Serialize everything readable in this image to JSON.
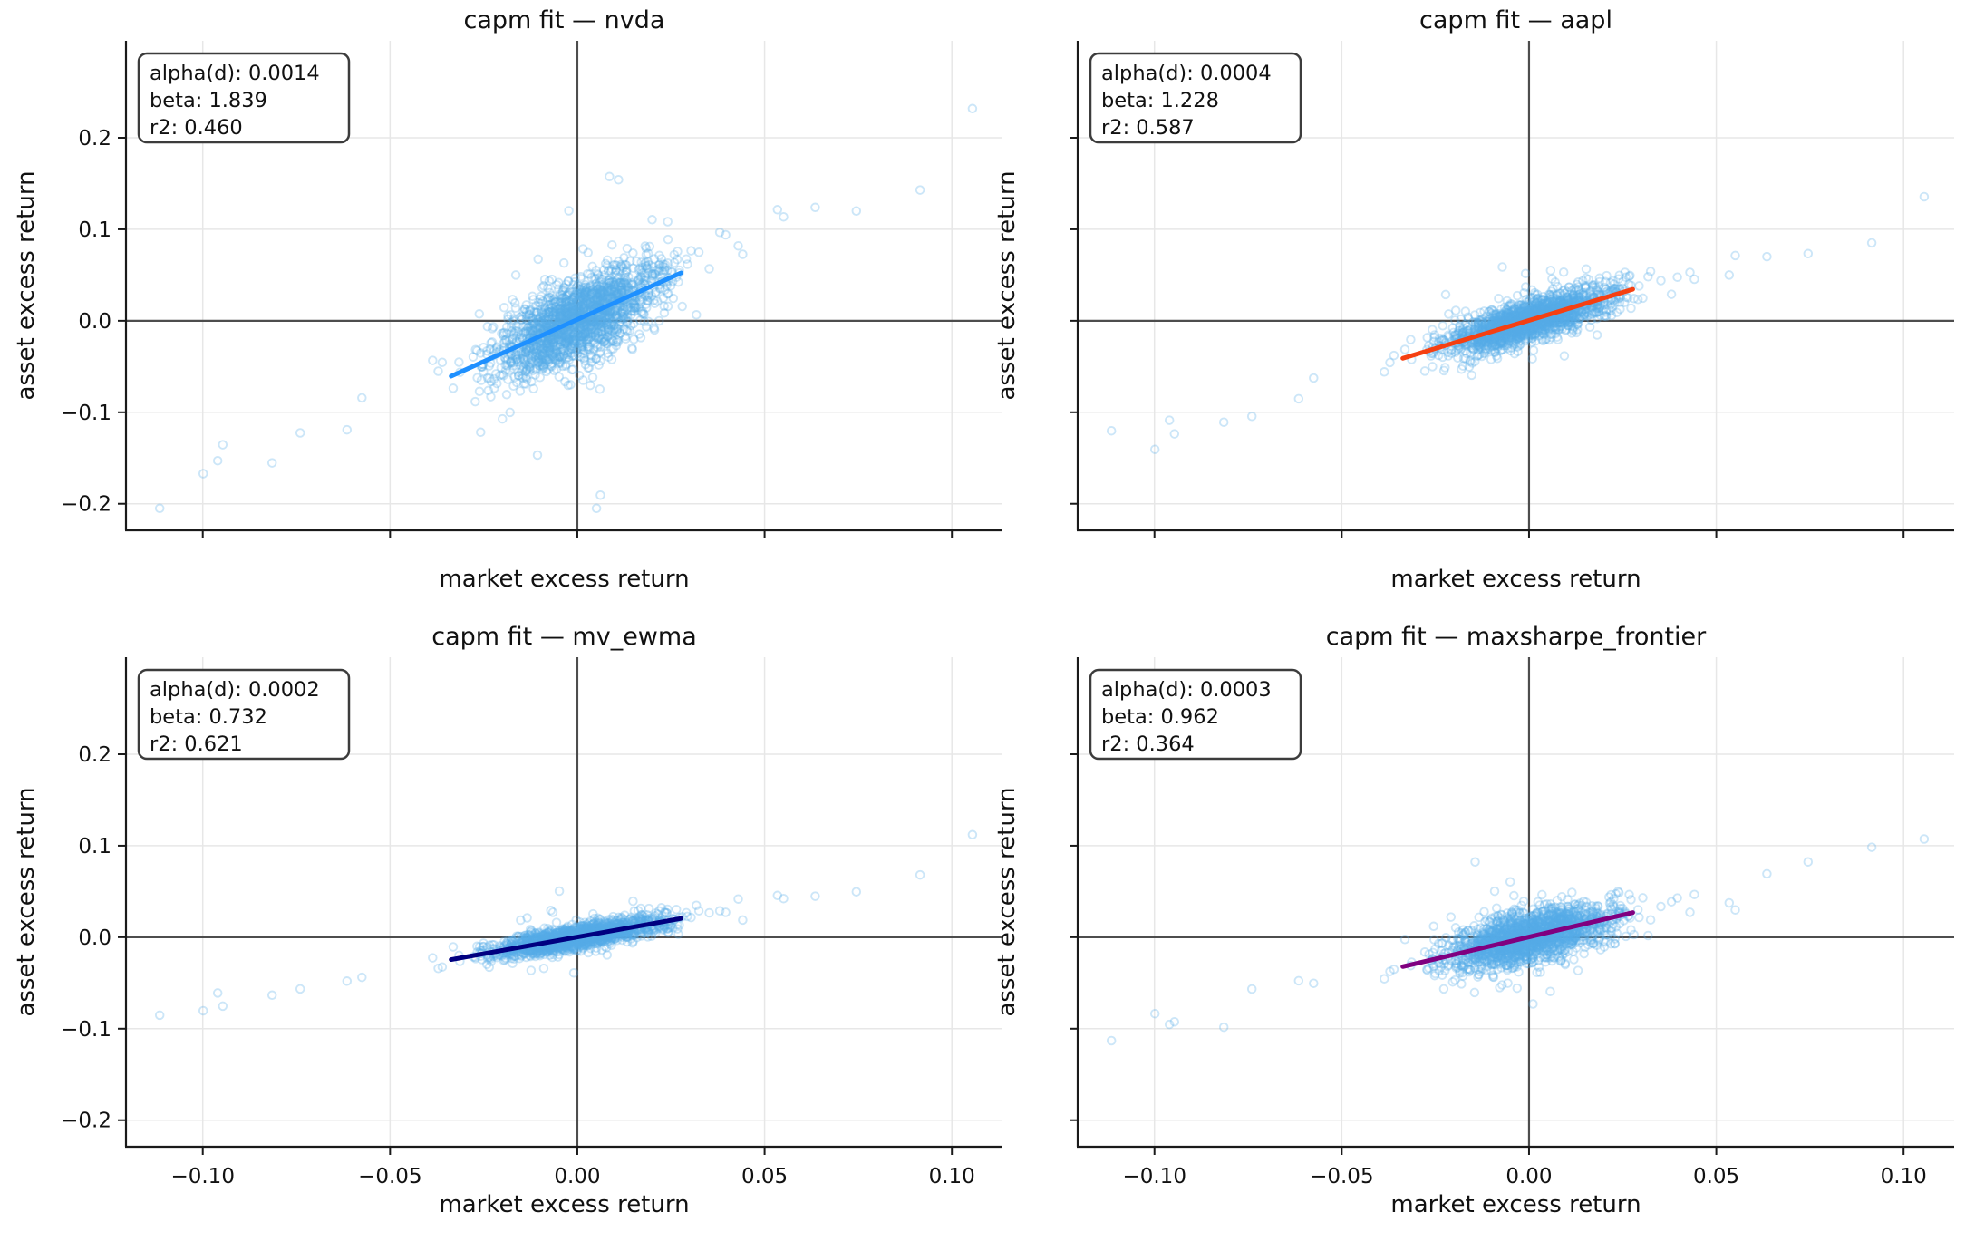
{
  "figure": {
    "background": "#ffffff",
    "scatter_color": "#56ade9",
    "scatter_alpha": 0.3,
    "zero_line_color": "#4d4d4d",
    "grid_color": "#e7e7e7",
    "spine_color": "#1a1a1a",
    "text_color": "#111111",
    "annotation_border_color": "#3c3c3c",
    "annotation_bg": "#ffffff"
  },
  "chart_data": [
    {
      "type": "scatter",
      "title": "capm fit — nvda",
      "xlabel": "market excess return",
      "ylabel": "asset excess return",
      "xlim": [
        -0.1205,
        0.1135
      ],
      "ylim": [
        -0.229,
        0.306
      ],
      "grid": true,
      "xticks": [
        -0.1,
        -0.05,
        0.0,
        0.05,
        0.1
      ],
      "yticks": [
        -0.2,
        -0.1,
        0.0,
        0.1,
        0.2
      ],
      "xtick_labels": [
        "−0.10",
        "−0.05",
        "0.00",
        "0.05",
        "0.10"
      ],
      "ytick_labels": [
        "−0.2",
        "−0.1",
        "0.0",
        "0.1",
        "0.2"
      ],
      "show_xtick_labels": false,
      "show_ytick_labels": true,
      "annotation_lines": [
        "alpha(d): 0.0014",
        "beta: 1.839",
        "r2: 0.460"
      ],
      "fit": {
        "alpha": 0.0014,
        "beta": 1.839,
        "r2": 0.46,
        "x_start": -0.0337,
        "x_end": 0.0277,
        "color": "#1E90FF"
      },
      "scatter": {
        "n": 1900,
        "x_sigma": 0.011,
        "eps_sigma": 0.0219,
        "eps_seed": 101
      }
    },
    {
      "type": "scatter",
      "title": "capm fit — aapl",
      "xlabel": "market excess return",
      "ylabel": "asset excess return",
      "xlim": [
        -0.1205,
        0.1135
      ],
      "ylim": [
        -0.229,
        0.306
      ],
      "grid": true,
      "xticks": [
        -0.1,
        -0.05,
        0.0,
        0.05,
        0.1
      ],
      "yticks": [
        -0.2,
        -0.1,
        0.0,
        0.1,
        0.2
      ],
      "xtick_labels": [
        "−0.10",
        "−0.05",
        "0.00",
        "0.05",
        "0.10"
      ],
      "ytick_labels": [
        "−0.2",
        "−0.1",
        "0.0",
        "0.1",
        "0.2"
      ],
      "show_xtick_labels": false,
      "show_ytick_labels": false,
      "annotation_lines": [
        "alpha(d): 0.0004",
        "beta: 1.228",
        "r2: 0.587"
      ],
      "fit": {
        "alpha": 0.0004,
        "beta": 1.228,
        "r2": 0.587,
        "x_start": -0.0337,
        "x_end": 0.0277,
        "color": "#F54012"
      },
      "scatter": {
        "n": 1900,
        "x_sigma": 0.011,
        "eps_sigma": 0.0113,
        "eps_seed": 202
      }
    },
    {
      "type": "scatter",
      "title": "capm fit — mv_ewma",
      "xlabel": "market excess return",
      "ylabel": "asset excess return",
      "xlim": [
        -0.1205,
        0.1135
      ],
      "ylim": [
        -0.229,
        0.306
      ],
      "grid": true,
      "xticks": [
        -0.1,
        -0.05,
        0.0,
        0.05,
        0.1
      ],
      "yticks": [
        -0.2,
        -0.1,
        0.0,
        0.1,
        0.2
      ],
      "xtick_labels": [
        "−0.10",
        "−0.05",
        "0.00",
        "0.05",
        "0.10"
      ],
      "ytick_labels": [
        "−0.2",
        "−0.1",
        "0.0",
        "0.1",
        "0.2"
      ],
      "show_xtick_labels": true,
      "show_ytick_labels": true,
      "annotation_lines": [
        "alpha(d): 0.0002",
        "beta: 0.732",
        "r2: 0.621"
      ],
      "fit": {
        "alpha": 0.0002,
        "beta": 0.732,
        "r2": 0.621,
        "x_start": -0.0337,
        "x_end": 0.0277,
        "color": "#000080"
      },
      "scatter": {
        "n": 1900,
        "x_sigma": 0.011,
        "eps_sigma": 0.0063,
        "eps_seed": 303
      }
    },
    {
      "type": "scatter",
      "title": "capm fit — maxsharpe_frontier",
      "xlabel": "market excess return",
      "ylabel": "asset excess return",
      "xlim": [
        -0.1205,
        0.1135
      ],
      "ylim": [
        -0.229,
        0.306
      ],
      "grid": true,
      "xticks": [
        -0.1,
        -0.05,
        0.0,
        0.05,
        0.1
      ],
      "yticks": [
        -0.2,
        -0.1,
        0.0,
        0.1,
        0.2
      ],
      "xtick_labels": [
        "−0.10",
        "−0.05",
        "0.00",
        "0.05",
        "0.10"
      ],
      "ytick_labels": [
        "−0.2",
        "−0.1",
        "0.0",
        "0.1",
        "0.2"
      ],
      "show_xtick_labels": true,
      "show_ytick_labels": false,
      "annotation_lines": [
        "alpha(d): 0.0003",
        "beta: 0.962",
        "r2: 0.364"
      ],
      "fit": {
        "alpha": 0.0003,
        "beta": 0.962,
        "r2": 0.364,
        "x_start": -0.0337,
        "x_end": 0.0277,
        "color": "#800080"
      },
      "scatter": {
        "n": 1900,
        "x_sigma": 0.011,
        "eps_sigma": 0.014,
        "eps_seed": 404
      }
    }
  ]
}
